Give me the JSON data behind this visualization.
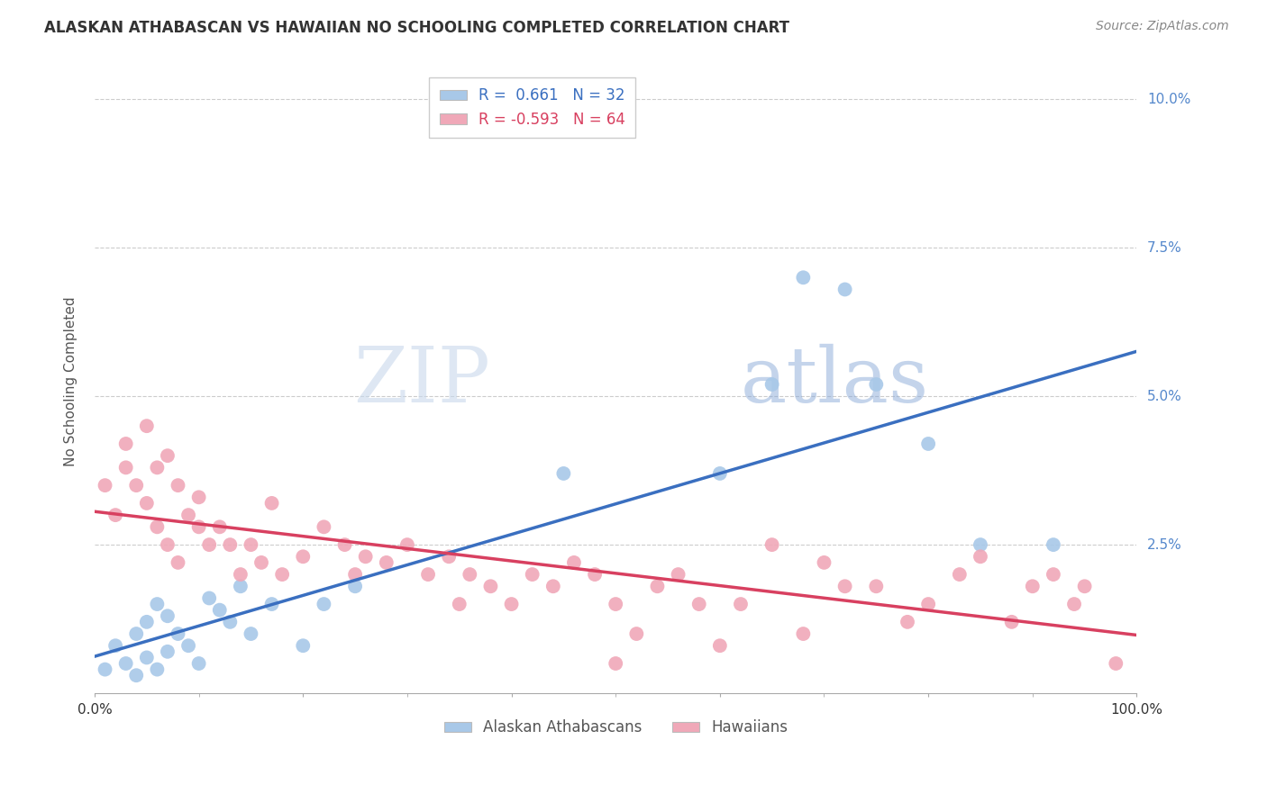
{
  "title": "ALASKAN ATHABASCAN VS HAWAIIAN NO SCHOOLING COMPLETED CORRELATION CHART",
  "source": "Source: ZipAtlas.com",
  "ylabel": "No Schooling Completed",
  "blue_R": "0.661",
  "blue_N": "32",
  "pink_R": "-0.593",
  "pink_N": "64",
  "legend_label_blue": "Alaskan Athabascans",
  "legend_label_pink": "Hawaiians",
  "xlim": [
    0,
    100
  ],
  "ylim": [
    0,
    10.5
  ],
  "yticks": [
    2.5,
    5.0,
    7.5,
    10.0
  ],
  "ytick_labels": [
    "2.5%",
    "5.0%",
    "7.5%",
    "10.0%"
  ],
  "blue_color": "#a8c8e8",
  "pink_color": "#f0a8b8",
  "blue_line_color": "#3a6fc0",
  "pink_line_color": "#d84060",
  "watermark_zip": "ZIP",
  "watermark_atlas": "atlas",
  "blue_points_x": [
    1,
    2,
    3,
    4,
    4,
    5,
    5,
    6,
    6,
    7,
    7,
    8,
    9,
    10,
    11,
    12,
    13,
    14,
    15,
    17,
    20,
    22,
    25,
    45,
    60,
    65,
    68,
    72,
    75,
    80,
    85,
    92
  ],
  "blue_points_y": [
    0.4,
    0.8,
    0.5,
    0.3,
    1.0,
    0.6,
    1.2,
    0.4,
    1.5,
    0.7,
    1.3,
    1.0,
    0.8,
    0.5,
    1.6,
    1.4,
    1.2,
    1.8,
    1.0,
    1.5,
    0.8,
    1.5,
    1.8,
    3.7,
    3.7,
    5.2,
    7.0,
    6.8,
    5.2,
    4.2,
    2.5,
    2.5
  ],
  "pink_points_x": [
    1,
    2,
    3,
    3,
    4,
    5,
    5,
    6,
    6,
    7,
    7,
    8,
    8,
    9,
    10,
    10,
    11,
    12,
    13,
    14,
    15,
    16,
    17,
    18,
    20,
    22,
    24,
    25,
    26,
    28,
    30,
    32,
    34,
    35,
    36,
    38,
    40,
    42,
    44,
    46,
    48,
    50,
    50,
    52,
    54,
    56,
    58,
    60,
    62,
    65,
    68,
    70,
    72,
    75,
    78,
    80,
    83,
    85,
    88,
    90,
    92,
    94,
    95,
    98
  ],
  "pink_points_y": [
    3.5,
    3.0,
    3.8,
    4.2,
    3.5,
    3.2,
    4.5,
    2.8,
    3.8,
    2.5,
    4.0,
    3.5,
    2.2,
    3.0,
    2.8,
    3.3,
    2.5,
    2.8,
    2.5,
    2.0,
    2.5,
    2.2,
    3.2,
    2.0,
    2.3,
    2.8,
    2.5,
    2.0,
    2.3,
    2.2,
    2.5,
    2.0,
    2.3,
    1.5,
    2.0,
    1.8,
    1.5,
    2.0,
    1.8,
    2.2,
    2.0,
    1.5,
    0.5,
    1.0,
    1.8,
    2.0,
    1.5,
    0.8,
    1.5,
    2.5,
    1.0,
    2.2,
    1.8,
    1.8,
    1.2,
    1.5,
    2.0,
    2.3,
    1.2,
    1.8,
    2.0,
    1.5,
    1.8,
    0.5
  ]
}
